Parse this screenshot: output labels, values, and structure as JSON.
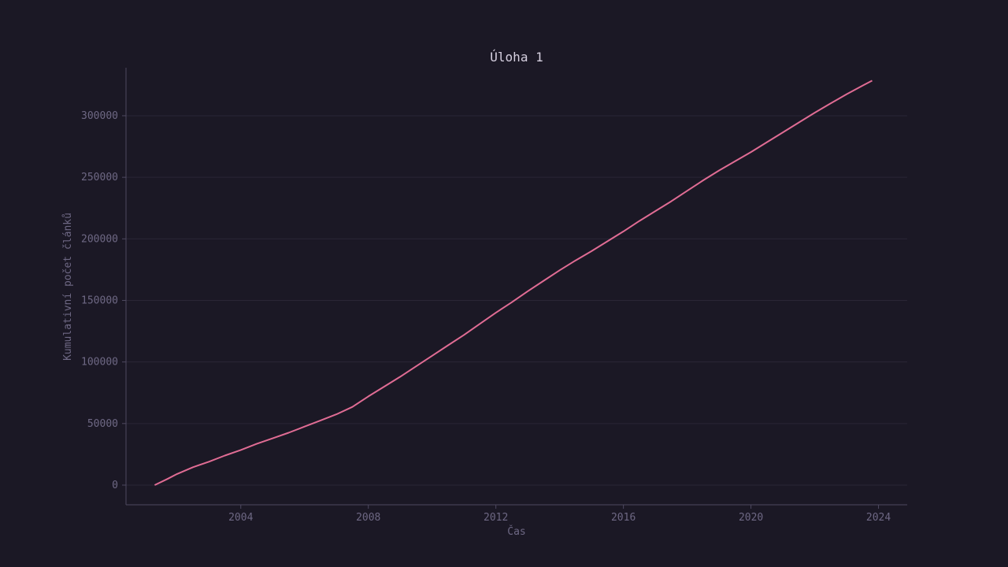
{
  "chart_data": {
    "type": "line",
    "title": "Úloha 1",
    "xlabel": "Čas",
    "ylabel": "Kumulativní počet článků",
    "xlim": [
      2000.4,
      2024.9
    ],
    "ylim": [
      -16000,
      339000
    ],
    "x_ticks": [
      2004,
      2008,
      2012,
      2016,
      2020,
      2024
    ],
    "y_ticks": [
      0,
      50000,
      100000,
      150000,
      200000,
      250000,
      300000
    ],
    "y_tick_labels": [
      "0",
      "50000",
      "100000",
      "150000",
      "200000",
      "250000",
      "300000"
    ],
    "grid": "horizontal",
    "colors": {
      "background": "#1b1825",
      "grid": "#2a2636",
      "axis": "#4e4960",
      "line": "#e06c94"
    },
    "series": [
      {
        "x": [
          2001.3,
          2001.7,
          2002.0,
          2002.5,
          2003.0,
          2003.5,
          2004.0,
          2004.5,
          2005.0,
          2005.5,
          2006.0,
          2006.5,
          2007.0,
          2007.5,
          2008.0,
          2008.5,
          2009.0,
          2009.5,
          2010.0,
          2010.5,
          2011.0,
          2011.5,
          2012.0,
          2012.5,
          2013.0,
          2013.5,
          2014.0,
          2014.5,
          2015.0,
          2015.5,
          2016.0,
          2016.5,
          2017.0,
          2017.5,
          2018.0,
          2018.5,
          2019.0,
          2019.5,
          2020.0,
          2020.5,
          2021.0,
          2021.5,
          2022.0,
          2022.5,
          2023.0,
          2023.5,
          2023.8
        ],
        "y": [
          0,
          5000,
          9000,
          14500,
          19000,
          24000,
          28500,
          33500,
          38000,
          42500,
          47500,
          52500,
          57500,
          63500,
          72000,
          80000,
          88000,
          96500,
          105000,
          113500,
          122000,
          131000,
          140000,
          148500,
          157500,
          166000,
          174500,
          182500,
          190000,
          198000,
          206000,
          214500,
          222500,
          230500,
          239000,
          247500,
          255500,
          263000,
          270500,
          278500,
          286500,
          294500,
          302500,
          310000,
          317500,
          324500,
          328500
        ]
      }
    ]
  }
}
